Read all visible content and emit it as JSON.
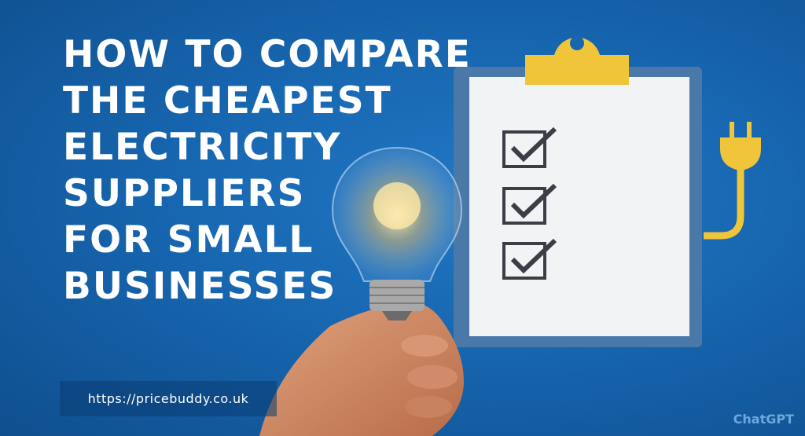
{
  "headline": {
    "lines": [
      "HOW TO COMPARE",
      "THE CHEAPEST",
      "ELECTRICITY",
      "SUPPLIERS",
      "FOR SMALL",
      "BUSINESSES"
    ]
  },
  "url_label": "https://pricebuddy.co.uk",
  "watermark": "ChatGPT",
  "colors": {
    "background": "#1766b0",
    "clipboard_frame": "#4a78a8",
    "paper": "#f2f3f5",
    "clip_and_plug": "#f0c53a",
    "text": "#ffffff"
  },
  "illustration": {
    "icons": [
      "clipboard-icon",
      "checkbox-checked-icon",
      "plug-icon",
      "light-bulb-icon",
      "hand-icon"
    ],
    "checklist_checked_count": 3
  }
}
